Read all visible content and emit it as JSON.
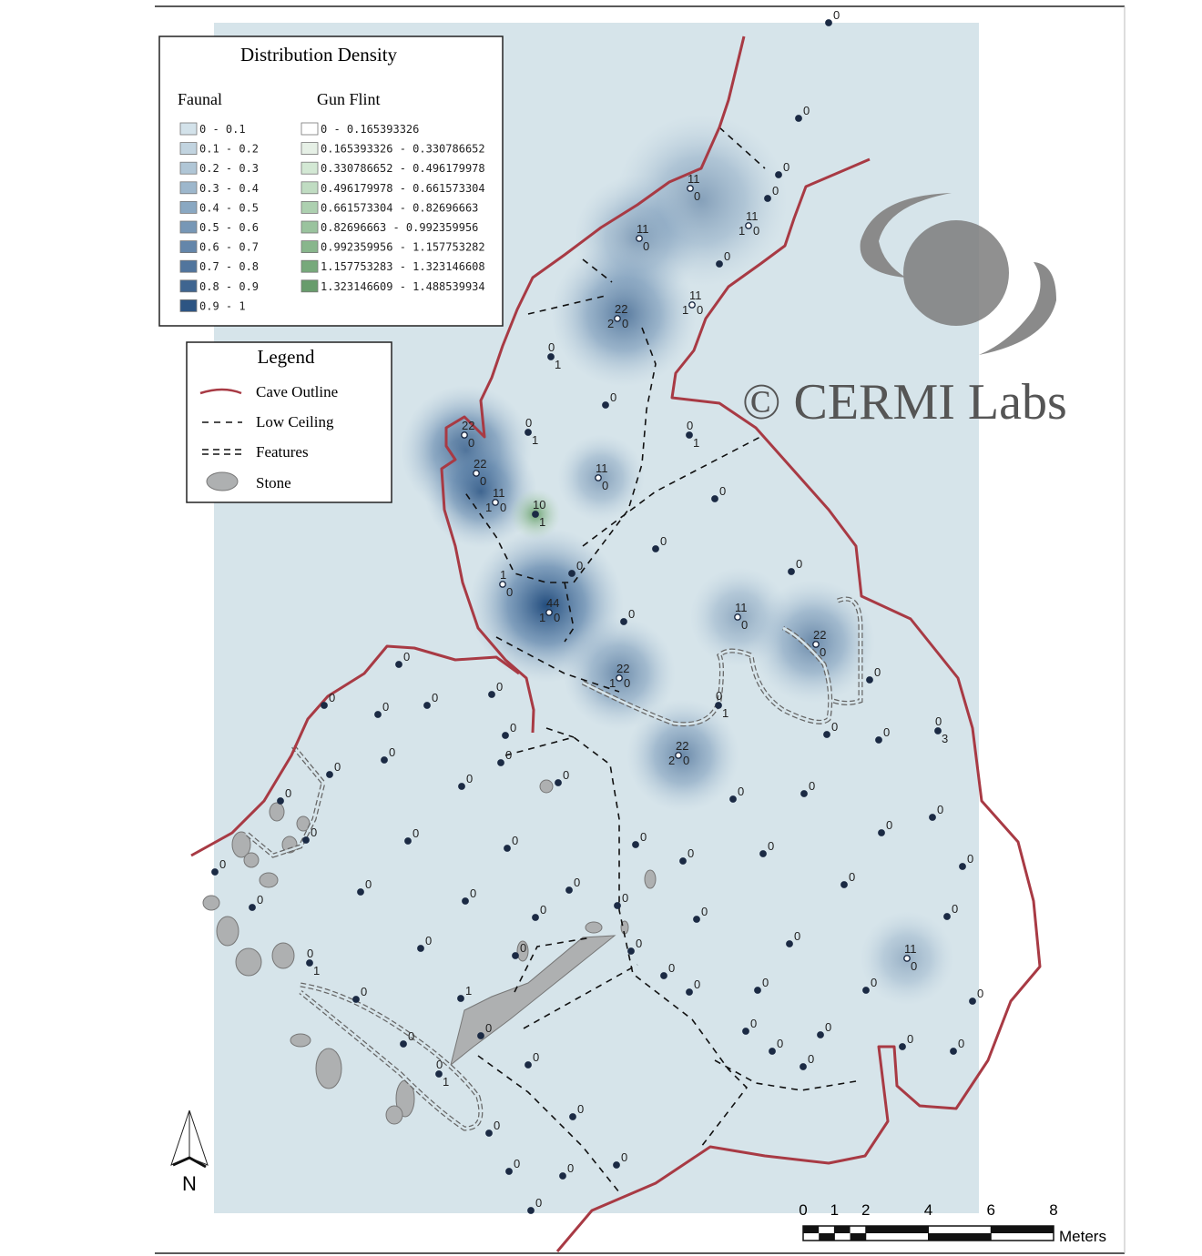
{
  "density_legend": {
    "title": "Distribution Density",
    "faunal": {
      "heading": "Faunal",
      "classes": [
        {
          "label": "0 - 0.1",
          "color": "#d3e2ea"
        },
        {
          "label": "0.1 - 0.2",
          "color": "#c2d4e0"
        },
        {
          "label": "0.2 - 0.3",
          "color": "#b0c6d6"
        },
        {
          "label": "0.3 - 0.4",
          "color": "#9db7cc"
        },
        {
          "label": "0.4 - 0.5",
          "color": "#8aa8c2"
        },
        {
          "label": "0.5 - 0.6",
          "color": "#7797b6"
        },
        {
          "label": "0.6 - 0.7",
          "color": "#6486aa"
        },
        {
          "label": "0.7 - 0.8",
          "color": "#51759d"
        },
        {
          "label": "0.8 - 0.9",
          "color": "#3f6590"
        },
        {
          "label": "0.9 - 1",
          "color": "#2d5583"
        }
      ]
    },
    "gun_flint": {
      "heading": "Gun Flint",
      "classes": [
        {
          "label": "0 - 0.165393326",
          "color": "#ffffff"
        },
        {
          "label": "0.165393326 - 0.330786652",
          "color": "#e6f0e6"
        },
        {
          "label": "0.330786652 - 0.496179978",
          "color": "#d3e8d4"
        },
        {
          "label": "0.496179978 - 0.661573304",
          "color": "#c0dcc2"
        },
        {
          "label": "0.661573304 - 0.82696663",
          "color": "#add0b0"
        },
        {
          "label": "0.82696663 - 0.992359956",
          "color": "#9ac39e"
        },
        {
          "label": "0.992359956 - 1.157753282",
          "color": "#88b68c"
        },
        {
          "label": "1.157753283 - 1.323146608",
          "color": "#77a97b"
        },
        {
          "label": "1.323146609 - 1.488539934",
          "color": "#689c6c"
        }
      ]
    }
  },
  "legend": {
    "title": "Legend",
    "items": [
      "Cave Outline",
      "Low Ceiling",
      "Features",
      "Stone"
    ]
  },
  "watermark": "© CERMI Labs",
  "north_arrow": "N",
  "scale_bar": {
    "ticks": [
      0,
      1,
      2,
      4,
      6,
      8
    ],
    "unit": "Meters"
  },
  "points": [
    {
      "labels": [
        "0"
      ]
    },
    {
      "labels": [
        "0"
      ]
    },
    {
      "labels": [
        "0"
      ]
    },
    {
      "labels": [
        "0"
      ]
    },
    {
      "labels": [
        "11",
        "0"
      ]
    },
    {
      "labels": [
        "11",
        "1",
        "0"
      ]
    },
    {
      "labels": [
        "11",
        "0"
      ]
    },
    {
      "labels": [
        "0"
      ]
    },
    {
      "labels": [
        "22",
        "2",
        "0"
      ]
    },
    {
      "labels": [
        "11",
        "1",
        "0"
      ]
    },
    {
      "labels": [
        "0",
        "1"
      ]
    },
    {
      "labels": [
        "0"
      ]
    },
    {
      "labels": [
        "22",
        "0"
      ]
    },
    {
      "labels": [
        "0",
        "1"
      ]
    },
    {
      "labels": [
        "0",
        "1"
      ]
    },
    {
      "labels": [
        "22",
        "0"
      ]
    },
    {
      "labels": [
        "11",
        "0"
      ]
    },
    {
      "labels": [
        "11",
        "1",
        "0"
      ]
    },
    {
      "labels": [
        "10",
        "1"
      ]
    },
    {
      "labels": [
        "0"
      ]
    },
    {
      "labels": [
        "0"
      ]
    },
    {
      "labels": [
        "0"
      ]
    },
    {
      "labels": [
        "1",
        "0"
      ]
    },
    {
      "labels": [
        "44",
        "1",
        "0"
      ]
    },
    {
      "labels": [
        "0"
      ]
    },
    {
      "labels": [
        "0"
      ]
    },
    {
      "labels": [
        "11",
        "0"
      ]
    },
    {
      "labels": [
        "22",
        "0"
      ]
    },
    {
      "labels": [
        "22",
        "1",
        "0"
      ]
    },
    {
      "labels": [
        "0",
        "1"
      ]
    },
    {
      "labels": [
        "0"
      ]
    },
    {
      "labels": [
        "0"
      ]
    },
    {
      "labels": [
        "0"
      ]
    },
    {
      "labels": [
        "0",
        "3"
      ]
    },
    {
      "labels": [
        "22",
        "2",
        "0"
      ]
    },
    {
      "labels": [
        "0"
      ]
    },
    {
      "labels": [
        "0"
      ]
    },
    {
      "labels": [
        "0"
      ]
    },
    {
      "labels": [
        "0"
      ]
    },
    {
      "labels": [
        "0"
      ]
    },
    {
      "labels": [
        "0"
      ]
    },
    {
      "labels": [
        "0"
      ]
    },
    {
      "labels": [
        "0"
      ]
    },
    {
      "labels": [
        "0"
      ]
    },
    {
      "labels": [
        "0"
      ]
    },
    {
      "labels": [
        "0"
      ]
    },
    {
      "labels": [
        "0"
      ]
    },
    {
      "labels": [
        "0"
      ]
    },
    {
      "labels": [
        "0"
      ]
    },
    {
      "labels": [
        "0"
      ]
    },
    {
      "labels": [
        "0"
      ]
    },
    {
      "labels": [
        "0"
      ]
    },
    {
      "labels": [
        "0"
      ]
    },
    {
      "labels": [
        "0"
      ]
    },
    {
      "labels": [
        "0"
      ]
    },
    {
      "labels": [
        "0"
      ]
    },
    {
      "labels": [
        "0"
      ]
    },
    {
      "labels": [
        "0"
      ]
    },
    {
      "labels": [
        "0"
      ]
    },
    {
      "labels": [
        "0"
      ]
    },
    {
      "labels": [
        "0"
      ]
    },
    {
      "labels": [
        "0"
      ]
    },
    {
      "labels": [
        "0"
      ]
    },
    {
      "labels": [
        "0"
      ]
    },
    {
      "labels": [
        "0"
      ]
    },
    {
      "labels": [
        "0"
      ]
    },
    {
      "labels": [
        "0"
      ]
    },
    {
      "labels": [
        "0"
      ]
    },
    {
      "labels": [
        "0"
      ]
    },
    {
      "labels": [
        "0"
      ]
    },
    {
      "labels": [
        "0"
      ]
    },
    {
      "labels": [
        "0"
      ]
    },
    {
      "labels": [
        "11",
        "0"
      ]
    },
    {
      "labels": [
        "0",
        "1"
      ]
    },
    {
      "labels": [
        "0"
      ]
    },
    {
      "labels": [
        "0"
      ]
    },
    {
      "labels": [
        "0"
      ]
    },
    {
      "labels": [
        "0"
      ]
    },
    {
      "labels": [
        "0"
      ]
    },
    {
      "labels": [
        "0"
      ]
    },
    {
      "labels": [
        "1"
      ]
    },
    {
      "labels": [
        "0"
      ]
    },
    {
      "labels": [
        "0"
      ]
    },
    {
      "labels": [
        "0"
      ]
    },
    {
      "labels": [
        "0"
      ]
    },
    {
      "labels": [
        "0"
      ]
    },
    {
      "labels": [
        "0"
      ]
    },
    {
      "labels": [
        "0"
      ]
    },
    {
      "labels": [
        "0"
      ]
    },
    {
      "labels": [
        "0"
      ]
    },
    {
      "labels": [
        "0",
        "1"
      ]
    },
    {
      "labels": [
        "0"
      ]
    },
    {
      "labels": [
        "0"
      ]
    },
    {
      "labels": [
        "0"
      ]
    },
    {
      "labels": [
        "0"
      ]
    },
    {
      "labels": [
        "0"
      ]
    },
    {
      "labels": [
        "0"
      ]
    }
  ]
}
